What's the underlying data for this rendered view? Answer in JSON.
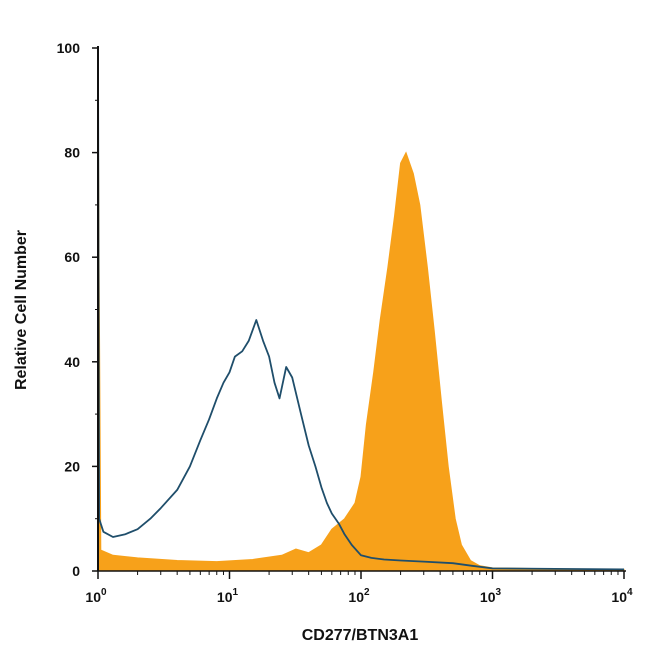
{
  "chart_data": {
    "type": "area",
    "title": "",
    "xlabel": "CD277/BTN3A1",
    "ylabel": "Relative Cell Number",
    "xscale": "log",
    "xlim": [
      1,
      10000
    ],
    "ylim": [
      0,
      100
    ],
    "grid": false,
    "legend": "none",
    "x_ticks": [
      {
        "value": 1,
        "base": "10",
        "exp": "0"
      },
      {
        "value": 10,
        "base": "10",
        "exp": "1"
      },
      {
        "value": 100,
        "base": "10",
        "exp": "2"
      },
      {
        "value": 1000,
        "base": "10",
        "exp": "3"
      },
      {
        "value": 10000,
        "base": "10",
        "exp": "4"
      }
    ],
    "y_ticks": [
      "0",
      "20",
      "40",
      "60",
      "80",
      "100"
    ],
    "series": [
      {
        "style": "filled",
        "color": "#F7A11A",
        "points": [
          [
            1.0,
            100
          ],
          [
            1.02,
            58
          ],
          [
            1.05,
            4
          ],
          [
            1.3,
            3
          ],
          [
            2,
            2.5
          ],
          [
            4,
            2
          ],
          [
            8,
            1.8
          ],
          [
            15,
            2.2
          ],
          [
            25,
            3
          ],
          [
            32,
            4.2
          ],
          [
            40,
            3.5
          ],
          [
            50,
            5
          ],
          [
            60,
            8
          ],
          [
            75,
            10
          ],
          [
            90,
            13
          ],
          [
            100,
            18
          ],
          [
            110,
            28
          ],
          [
            125,
            38
          ],
          [
            140,
            48
          ],
          [
            160,
            58
          ],
          [
            180,
            68
          ],
          [
            200,
            78
          ],
          [
            220,
            80
          ],
          [
            250,
            76
          ],
          [
            280,
            70
          ],
          [
            320,
            58
          ],
          [
            360,
            46
          ],
          [
            410,
            32
          ],
          [
            460,
            20
          ],
          [
            520,
            10
          ],
          [
            580,
            5
          ],
          [
            680,
            2
          ],
          [
            800,
            1
          ],
          [
            1000,
            0.6
          ],
          [
            3000,
            0.4
          ],
          [
            10000,
            0.3
          ]
        ]
      },
      {
        "style": "outline",
        "color": "#1F4E6B",
        "points": [
          [
            1.0,
            100
          ],
          [
            1.02,
            10
          ],
          [
            1.1,
            7.5
          ],
          [
            1.3,
            6.5
          ],
          [
            1.6,
            7
          ],
          [
            2,
            8
          ],
          [
            2.5,
            10
          ],
          [
            3,
            12
          ],
          [
            4,
            15.5
          ],
          [
            5,
            20
          ],
          [
            6,
            25
          ],
          [
            7,
            29
          ],
          [
            8,
            33
          ],
          [
            9,
            36
          ],
          [
            10,
            38
          ],
          [
            11,
            41
          ],
          [
            12.5,
            42
          ],
          [
            14,
            44
          ],
          [
            16,
            48
          ],
          [
            18,
            44
          ],
          [
            20,
            41
          ],
          [
            22,
            36
          ],
          [
            24,
            33
          ],
          [
            27,
            39
          ],
          [
            30,
            37
          ],
          [
            35,
            30
          ],
          [
            40,
            24
          ],
          [
            45,
            20
          ],
          [
            50,
            16
          ],
          [
            55,
            13
          ],
          [
            60,
            11
          ],
          [
            68,
            9
          ],
          [
            75,
            7
          ],
          [
            85,
            5
          ],
          [
            100,
            3
          ],
          [
            120,
            2.5
          ],
          [
            150,
            2.2
          ],
          [
            200,
            2
          ],
          [
            300,
            1.8
          ],
          [
            500,
            1.5
          ],
          [
            700,
            1
          ],
          [
            1000,
            0.5
          ],
          [
            3000,
            0.4
          ],
          [
            10000,
            0.3
          ]
        ]
      }
    ]
  }
}
